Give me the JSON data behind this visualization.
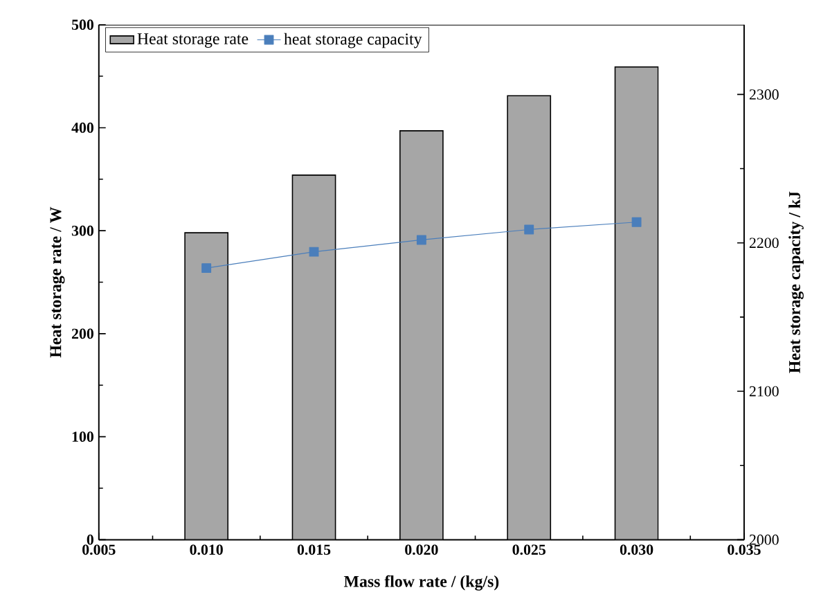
{
  "chart_data": {
    "type": "bar",
    "xlabel": "Mass flow rate / (kg/s)",
    "ylabel": "Heat storage rate / W",
    "y2label": "Heat storage capacity / kJ",
    "x": [
      0.01,
      0.015,
      0.02,
      0.025,
      0.03
    ],
    "series": [
      {
        "name": "Heat storage rate",
        "color": "#a6a6a6",
        "values": [
          298,
          354,
          397,
          431,
          459
        ]
      },
      {
        "name": "heat storage capacity",
        "type": "line",
        "axis": "y2",
        "color": "#4a7ebb",
        "marker": "square",
        "values": [
          2183,
          2194,
          2202,
          2209,
          2214
        ]
      }
    ],
    "xlim": [
      0.005,
      0.035
    ],
    "xticks": [
      {
        "value": 0.005,
        "label": "0.005"
      },
      {
        "value": 0.01,
        "label": "0.010"
      },
      {
        "value": 0.015,
        "label": "0.015"
      },
      {
        "value": 0.02,
        "label": "0.020"
      },
      {
        "value": 0.025,
        "label": "0.025"
      },
      {
        "value": 0.03,
        "label": "0.030"
      },
      {
        "value": 0.035,
        "label": "0.035"
      }
    ],
    "ylim": [
      0,
      500
    ],
    "yticks": [
      0,
      100,
      200,
      300,
      400,
      500
    ],
    "y2lim": [
      2000,
      2347
    ],
    "y2ticks": [
      2000,
      2100,
      2200,
      2300
    ],
    "grid": false,
    "legend": "top left"
  }
}
